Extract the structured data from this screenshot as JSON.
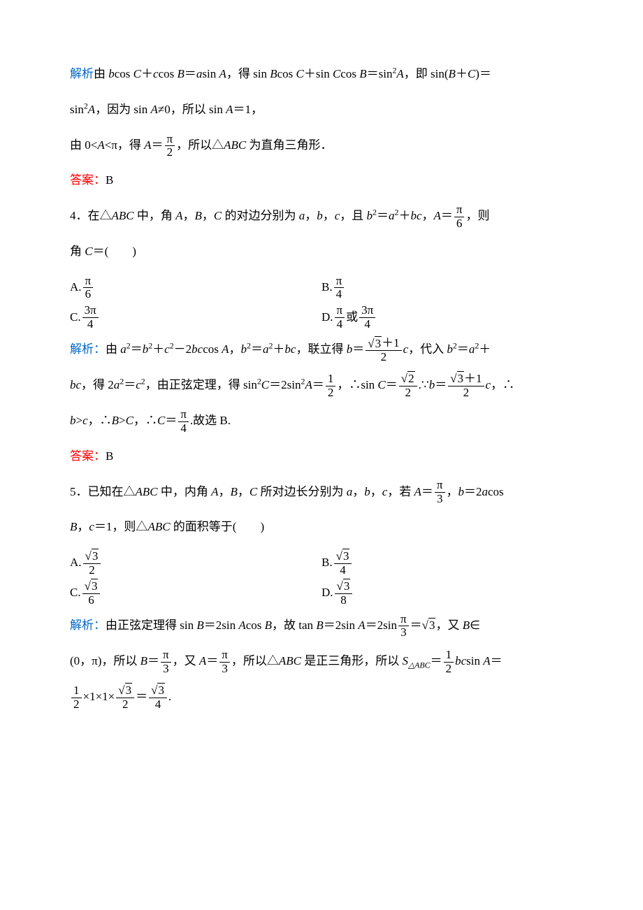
{
  "colors": {
    "text": "#000000",
    "blue": "#0066cc",
    "red": "#ff0000",
    "background": "#ffffff"
  },
  "typography": {
    "body_fontsize_pt": 13,
    "line_height": 2.4,
    "font_family": "SimSun / Times New Roman"
  },
  "content": {
    "q3_analysis": {
      "label": "解析",
      "line1_a": "由 ",
      "line1_b": "b",
      "line1_c": "cos ",
      "line1_d": "C",
      "line1_e": "＋",
      "line1_f": "c",
      "line1_g": "cos ",
      "line1_h": "B",
      "line1_i": "＝",
      "line1_j": "a",
      "line1_k": "sin ",
      "line1_l": "A",
      "line1_m": "，得 sin ",
      "line1_n": "B",
      "line1_o": "cos ",
      "line1_p": "C",
      "line1_q": "＋sin ",
      "line1_r": "C",
      "line1_s": "cos ",
      "line1_t": "B",
      "line1_u": "＝sin",
      "line1_v": "A",
      "line1_w": "，即 sin(",
      "line1_x": "B",
      "line1_y": "＋",
      "line1_z": "C",
      "line1_aa": ")＝",
      "line2_a": "sin",
      "line2_b": "A",
      "line2_c": "，因为 sin ",
      "line2_d": "A",
      "line2_e": "≠0，所以 sin ",
      "line2_f": "A",
      "line2_g": "＝1，",
      "line3_a": "由 0<",
      "line3_b": "A",
      "line3_c": "<π，得 ",
      "line3_d": "A",
      "line3_e": "＝",
      "frac1_num": "π",
      "frac1_den": "2",
      "line3_f": "，所以",
      "line3_g": "△",
      "line3_h": "ABC",
      "line3_i": " 为直角三角形．"
    },
    "q3_answer": {
      "label": "答案：",
      "value": "B"
    },
    "q4": {
      "stem_a": "4．在△",
      "stem_b": "ABC",
      "stem_c": " 中，角 ",
      "stem_d": "A",
      "stem_e": "，",
      "stem_f": "B",
      "stem_g": "，",
      "stem_h": "C",
      "stem_i": " 的对边分别为 ",
      "stem_j": "a",
      "stem_k": "，",
      "stem_l": "b",
      "stem_m": "，",
      "stem_n": "c",
      "stem_o": "，且 ",
      "stem_p": "b",
      "stem_q": "＝",
      "stem_r": "a",
      "stem_s": "＋",
      "stem_t": "bc",
      "stem_u": "，",
      "stem_v": "A",
      "stem_w": "＝",
      "fracA_num": "π",
      "fracA_den": "6",
      "stem_x": "，则",
      "stem2_a": "角 ",
      "stem2_b": "C",
      "stem2_c": "＝(　　)",
      "optA_pre": "A.",
      "optA_num": "π",
      "optA_den": "6",
      "optB_pre": "B.",
      "optB_num": "π",
      "optB_den": "4",
      "optC_pre": "C.",
      "optC_num": "3π",
      "optC_den": "4",
      "optD_pre": "D.",
      "optD1_num": "π",
      "optD1_den": "4",
      "optD_mid": "或",
      "optD2_num": "3π",
      "optD2_den": "4"
    },
    "q4_analysis": {
      "label": "解析：",
      "l1_a": "由 ",
      "l1_b": "a",
      "l1_c": "＝",
      "l1_d": "b",
      "l1_e": "＋",
      "l1_f": "c",
      "l1_g": "－2",
      "l1_h": "bc",
      "l1_i": "cos ",
      "l1_j": "A",
      "l1_k": "，",
      "l1_l": "b",
      "l1_m": "＝",
      "l1_n": "a",
      "l1_o": "＋",
      "l1_p": "bc",
      "l1_q": "，联立得 ",
      "l1_r": "b",
      "l1_s": "＝",
      "frac_b1_num_a": "3",
      "frac_b1_num_b": "＋1",
      "frac_b1_den": "2",
      "l1_t": "c",
      "l1_u": "，代入 ",
      "l1_v": "b",
      "l1_w": "＝",
      "l1_x": "a",
      "l1_y": "＋",
      "l2_a": "bc",
      "l2_b": "，得 2",
      "l2_c": "a",
      "l2_d": "＝",
      "l2_e": "c",
      "l2_f": "，由正弦定理，得 sin",
      "l2_g": "C",
      "l2_h": "＝2sin",
      "l2_i": "A",
      "l2_j": "＝",
      "frac_half_num": "1",
      "frac_half_den": "2",
      "l2_k": "，∴sin ",
      "l2_l": "C",
      "l2_m": "＝",
      "frac_r2_num": "2",
      "frac_r2_den": "2",
      "l2_n": ".∵",
      "l2_o": "b",
      "l2_p": "＝",
      "frac_b2_num_a": "3",
      "frac_b2_num_b": "＋1",
      "frac_b2_den": "2",
      "l2_q": "c",
      "l2_r": "，∴",
      "l3_a": "b",
      "l3_b": ">",
      "l3_c": "c",
      "l3_d": "，∴",
      "l3_e": "B",
      "l3_f": ">",
      "l3_g": "C",
      "l3_h": "，∴",
      "l3_i": "C",
      "l3_j": "＝",
      "frac_pi4_num": "π",
      "frac_pi4_den": "4",
      "l3_k": ".故选 B."
    },
    "q4_answer": {
      "label": "答案：",
      "value": "B"
    },
    "q5": {
      "stem_a": "5．已知在△",
      "stem_b": "ABC",
      "stem_c": " 中，内角 ",
      "stem_d": "A",
      "stem_e": "，",
      "stem_f": "B",
      "stem_g": "，",
      "stem_h": "C",
      "stem_i": " 所对边长分别为 ",
      "stem_j": "a",
      "stem_k": "，",
      "stem_l": "b",
      "stem_m": "，",
      "stem_n": "c",
      "stem_o": "，若 ",
      "stem_p": "A",
      "stem_q": "＝",
      "fracA_num": "π",
      "fracA_den": "3",
      "stem_r": "，",
      "stem_s": "b",
      "stem_t": "＝2",
      "stem_u": "a",
      "stem_v": "cos",
      "stem2_a": "B",
      "stem2_b": "，",
      "stem2_c": "c",
      "stem2_d": "＝1，则△",
      "stem2_e": "ABC",
      "stem2_f": " 的面积等于(　　)",
      "optA_pre": "A.",
      "optA_num": "3",
      "optA_den": "2",
      "optB_pre": "B.",
      "optB_num": "3",
      "optB_den": "4",
      "optC_pre": "C.",
      "optC_num": "3",
      "optC_den": "6",
      "optD_pre": "D.",
      "optD_num": "3",
      "optD_den": "8"
    },
    "q5_analysis": {
      "label": "解析：",
      "l1_a": "由正弦定理得 sin ",
      "l1_b": "B",
      "l1_c": "＝2sin ",
      "l1_d": "A",
      "l1_e": "cos ",
      "l1_f": "B",
      "l1_g": "，故 tan ",
      "l1_h": "B",
      "l1_i": "＝2sin ",
      "l1_j": "A",
      "l1_k": "＝2sin",
      "frac_pi3_num": "π",
      "frac_pi3_den": "3",
      "l1_l": "＝",
      "sqrt3": "3",
      "l1_m": "，又 ",
      "l1_n": "B",
      "l1_o": "∈",
      "l2_a": "(0，π)，所以 ",
      "l2_b": "B",
      "l2_c": "＝",
      "frac_pi3b_num": "π",
      "frac_pi3b_den": "3",
      "l2_d": "，又 ",
      "l2_e": "A",
      "l2_f": "＝",
      "frac_pi3c_num": "π",
      "frac_pi3c_den": "3",
      "l2_g": "，所以",
      "l2_h": "△",
      "l2_i": "ABC",
      "l2_j": " 是正三角形，所以 ",
      "l2_k": "S",
      "l2_ksub": "△ABC",
      "l2_l": "＝",
      "frac_h1_num": "1",
      "frac_h1_den": "2",
      "l2_m": "bc",
      "l2_n": "sin ",
      "l2_o": "A",
      "l2_p": "＝",
      "l3_num1": "1",
      "l3_den1": "2",
      "l3_a": "×1×1×",
      "l3_num2": "3",
      "l3_den2": "2",
      "l3_b": "＝",
      "l3_num3": "3",
      "l3_den3": "4",
      "l3_c": "."
    }
  }
}
